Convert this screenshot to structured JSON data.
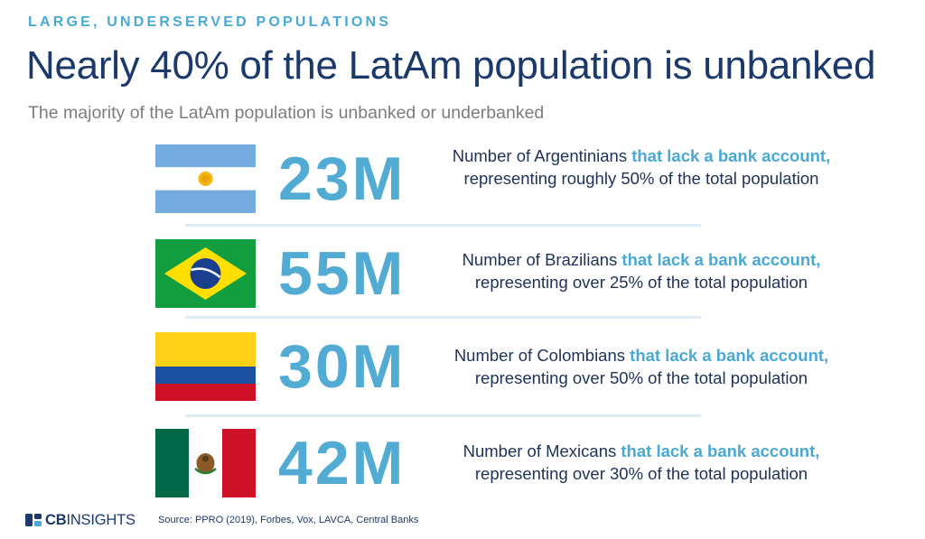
{
  "header": {
    "kicker": "LARGE, UNDERSERVED POPULATIONS",
    "title": "Nearly 40% of the LatAm population is unbanked",
    "subtitle": "The majority of the LatAm population is unbanked or underbanked"
  },
  "stats": [
    {
      "country": "Argentina",
      "value": "23M",
      "text_before": "Number of Argentinians ",
      "highlight": "that lack a bank account,",
      "text_after": " representing roughly 50% of the total population"
    },
    {
      "country": "Brazil",
      "value": "55M",
      "text_before": "Number of Brazilians ",
      "highlight": "that lack a bank account,",
      "text_after": " representing over 25% of the total population"
    },
    {
      "country": "Colombia",
      "value": "30M",
      "text_before": "Number of Colombians ",
      "highlight": "that lack a bank account,",
      "text_after": " representing over 50% of the total population"
    },
    {
      "country": "Mexico",
      "value": "42M",
      "text_before": "Number of Mexicans ",
      "highlight": "that lack a bank account,",
      "text_after": " representing over 30% of the total population"
    }
  ],
  "footer": {
    "logo_prefix": "CB",
    "logo_suffix": "INSIGHTS",
    "source": "Source: PPRO (2019), Forbes, Vox, LAVCA, Central Banks"
  },
  "colors": {
    "accent": "#4aa8d4",
    "navy": "#1b3a6b",
    "number": "#52abd3"
  }
}
